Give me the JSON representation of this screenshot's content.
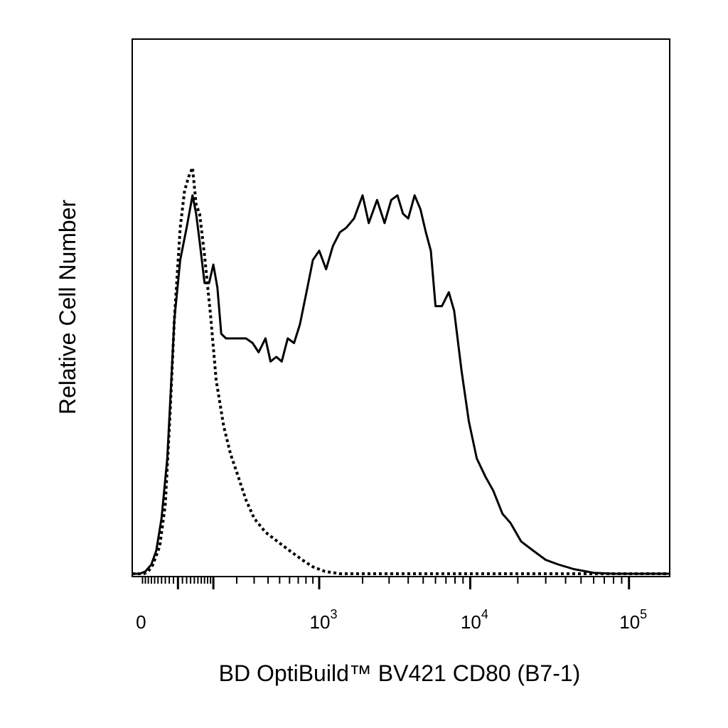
{
  "chart_data": {
    "type": "line",
    "title": "",
    "xlabel": "BD OptiBuild™ BV421 CD80 (B7-1)",
    "ylabel": "Relative Cell Number",
    "x_scale": "biexponential",
    "xlim": [
      -140,
      180000
    ],
    "ylim": [
      0,
      100
    ],
    "grid": false,
    "legend": "none",
    "x_tick_labels": [
      {
        "value": 0,
        "base": "0",
        "exp": ""
      },
      {
        "value": 1000,
        "base": "10",
        "exp": "3"
      },
      {
        "value": 10000,
        "base": "10",
        "exp": "4"
      },
      {
        "value": 100000,
        "base": "10",
        "exp": "5"
      }
    ],
    "series": [
      {
        "style": "solid",
        "color": "#000000",
        "points": [
          [
            -140,
            0
          ],
          [
            -110,
            0
          ],
          [
            -90,
            0.5
          ],
          [
            -70,
            2
          ],
          [
            -55,
            5
          ],
          [
            -40,
            12
          ],
          [
            -25,
            25
          ],
          [
            -15,
            42
          ],
          [
            -8,
            55
          ],
          [
            5,
            68
          ],
          [
            20,
            75
          ],
          [
            35,
            82
          ],
          [
            45,
            78
          ],
          [
            55,
            72
          ],
          [
            70,
            63
          ],
          [
            85,
            63
          ],
          [
            100,
            67
          ],
          [
            115,
            62
          ],
          [
            130,
            52
          ],
          [
            150,
            51
          ],
          [
            180,
            51
          ],
          [
            210,
            51
          ],
          [
            250,
            51
          ],
          [
            290,
            50
          ],
          [
            330,
            48
          ],
          [
            380,
            51
          ],
          [
            420,
            46
          ],
          [
            470,
            47
          ],
          [
            520,
            46
          ],
          [
            580,
            51
          ],
          [
            650,
            50
          ],
          [
            720,
            54
          ],
          [
            820,
            62
          ],
          [
            900,
            68
          ],
          [
            1000,
            70
          ],
          [
            1120,
            66
          ],
          [
            1250,
            71
          ],
          [
            1400,
            74
          ],
          [
            1550,
            75
          ],
          [
            1750,
            77
          ],
          [
            2000,
            82
          ],
          [
            2200,
            76
          ],
          [
            2500,
            81
          ],
          [
            2800,
            76
          ],
          [
            3100,
            81
          ],
          [
            3400,
            82
          ],
          [
            3700,
            78
          ],
          [
            4000,
            77
          ],
          [
            4400,
            82
          ],
          [
            4800,
            79
          ],
          [
            5200,
            74
          ],
          [
            5600,
            70
          ],
          [
            6000,
            58
          ],
          [
            6600,
            58
          ],
          [
            7300,
            61
          ],
          [
            7900,
            57
          ],
          [
            8800,
            44
          ],
          [
            9800,
            33
          ],
          [
            11000,
            25
          ],
          [
            12500,
            21
          ],
          [
            14000,
            18
          ],
          [
            16000,
            13
          ],
          [
            18000,
            11
          ],
          [
            21000,
            7
          ],
          [
            25000,
            5
          ],
          [
            30000,
            3
          ],
          [
            36000,
            2
          ],
          [
            45000,
            1
          ],
          [
            60000,
            0.2
          ],
          [
            80000,
            0
          ],
          [
            120000,
            0
          ],
          [
            180000,
            0
          ]
        ]
      },
      {
        "style": "dotted",
        "color": "#000000",
        "points": [
          [
            -140,
            0
          ],
          [
            -110,
            0
          ],
          [
            -95,
            0
          ],
          [
            -80,
            0.5
          ],
          [
            -65,
            2
          ],
          [
            -45,
            6
          ],
          [
            -30,
            15
          ],
          [
            -18,
            35
          ],
          [
            -8,
            55
          ],
          [
            5,
            75
          ],
          [
            15,
            83
          ],
          [
            25,
            86
          ],
          [
            35,
            88
          ],
          [
            45,
            80
          ],
          [
            55,
            78
          ],
          [
            70,
            69
          ],
          [
            90,
            56
          ],
          [
            110,
            42
          ],
          [
            140,
            32
          ],
          [
            170,
            26
          ],
          [
            200,
            22
          ],
          [
            250,
            16
          ],
          [
            300,
            12
          ],
          [
            380,
            9
          ],
          [
            480,
            7
          ],
          [
            600,
            5
          ],
          [
            750,
            3
          ],
          [
            900,
            1.5
          ],
          [
            1100,
            0.5
          ],
          [
            1400,
            0
          ],
          [
            2000,
            0
          ],
          [
            180000,
            0
          ]
        ]
      }
    ]
  }
}
